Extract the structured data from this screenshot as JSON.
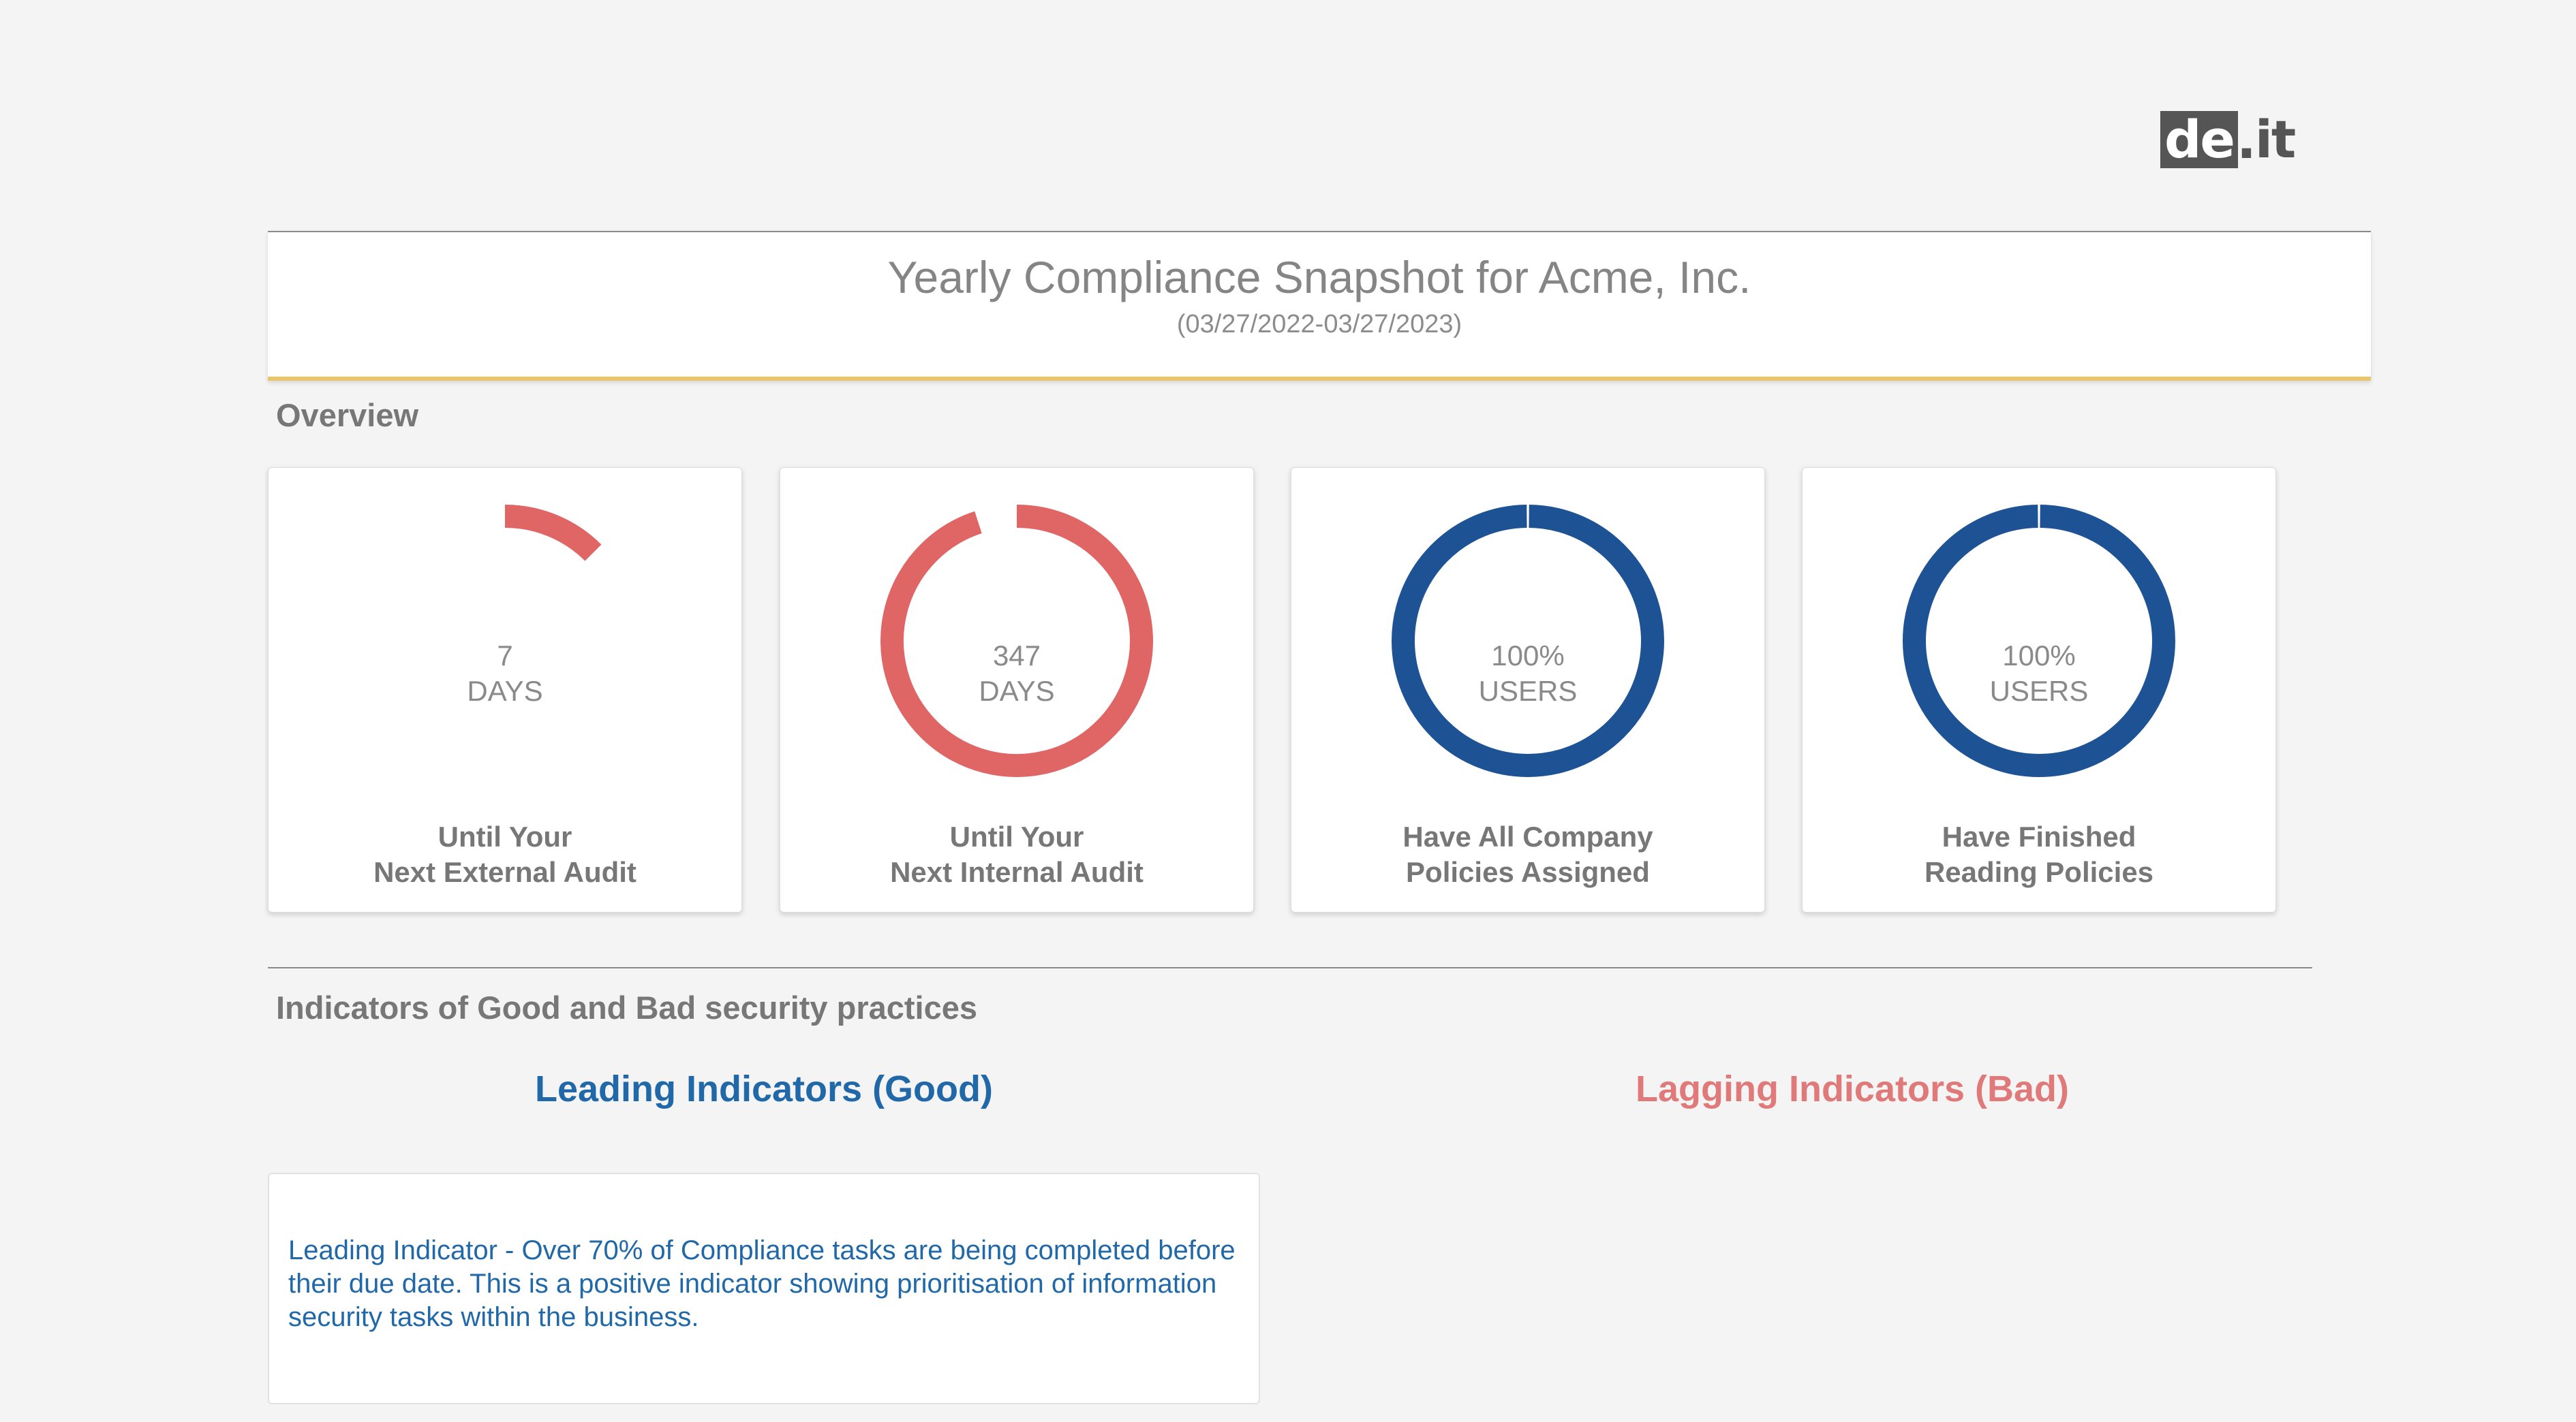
{
  "logo": {
    "text_box": "de",
    "text_dot": ".",
    "text_rest": "it"
  },
  "header": {
    "title": "Yearly Compliance Snapshot for Acme, Inc.",
    "subtitle": "(03/27/2022-03/27/2023)"
  },
  "overview": {
    "heading": "Overview",
    "cards": [
      {
        "value": "7",
        "unit": "DAYS",
        "label_line1": "Until Your",
        "label_line2": "Next External Audit",
        "color": "#e06666",
        "fraction": 0.125
      },
      {
        "value": "347",
        "unit": "DAYS",
        "label_line1": "Until Your",
        "label_line2": "Next Internal Audit",
        "color": "#e06666",
        "fraction": 0.95
      },
      {
        "value": "100%",
        "unit": "USERS",
        "label_line1": "Have All Company",
        "label_line2": "Policies Assigned",
        "color": "#1d5294",
        "fraction": 1.0
      },
      {
        "value": "100%",
        "unit": "USERS",
        "label_line1": "Have Finished",
        "label_line2": "Reading Policies",
        "color": "#1d5294",
        "fraction": 1.0
      }
    ]
  },
  "indicators": {
    "heading": "Indicators of Good and Bad security practices",
    "leading_title": "Leading Indicators (Good)",
    "lagging_title": "Lagging Indicators (Bad)",
    "leading_items": [
      "Leading Indicator - Over 70% of Compliance tasks are being completed before their due date. This is a positive indicator showing prioritisation of information security tasks within the business."
    ]
  },
  "colors": {
    "good": "#2168a8",
    "bad": "#e07a7a",
    "header_accent": "#e9c566"
  }
}
